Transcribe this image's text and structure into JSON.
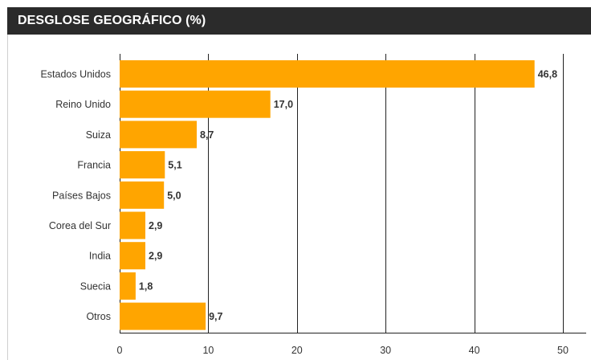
{
  "title": "DESGLOSE GEOGRÁFICO (%)",
  "colors": {
    "bar": "#ffa500",
    "title_bg": "#2b2b2b",
    "title_text": "#ffffff",
    "grid": "#222222",
    "text": "#333333"
  },
  "chart_data": {
    "type": "bar",
    "orientation": "horizontal",
    "categories": [
      "Estados Unidos",
      "Reino Unido",
      "Suiza",
      "Francia",
      "Países Bajos",
      "Corea del Sur",
      "India",
      "Suecia",
      "Otros"
    ],
    "values": [
      46.8,
      17.0,
      8.7,
      5.1,
      5.0,
      2.9,
      2.9,
      1.8,
      9.7
    ],
    "value_labels": [
      "46,8",
      "17,0",
      "8,7",
      "5,1",
      "5,0",
      "2,9",
      "2,9",
      "1,8",
      "9,7"
    ],
    "xlim": [
      0,
      50
    ],
    "xticks": [
      0,
      10,
      20,
      30,
      40,
      50
    ],
    "xtick_labels": [
      "0",
      "10",
      "20",
      "30",
      "40",
      "50"
    ],
    "grid": "vertical",
    "legend": "none"
  }
}
